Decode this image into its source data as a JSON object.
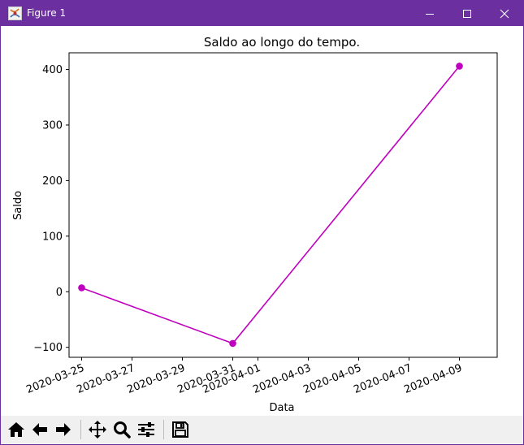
{
  "window": {
    "title": "Figure 1",
    "accent_color": "#6b2fa0",
    "controls": [
      "minimize-icon",
      "maximize-icon",
      "close-icon"
    ]
  },
  "toolbar": {
    "buttons": [
      "home-icon",
      "back-icon",
      "forward-icon",
      "pan-icon",
      "zoom-icon",
      "configure-subplots-icon",
      "save-icon"
    ]
  },
  "chart_data": {
    "type": "line",
    "title": "Saldo ao longo do tempo.",
    "xlabel": "Data",
    "ylabel": "Saldo",
    "x": [
      "2020-03-25",
      "2020-03-31",
      "2020-04-09"
    ],
    "y": [
      7,
      -93,
      406
    ],
    "x_ticks": [
      "2020-03-25",
      "2020-03-27",
      "2020-03-29",
      "2020-03-31",
      "2020-04-01",
      "2020-04-03",
      "2020-04-05",
      "2020-04-07",
      "2020-04-09"
    ],
    "y_ticks": [
      -100,
      0,
      100,
      200,
      300,
      400
    ],
    "y_tick_labels": [
      "−100",
      "0",
      "100",
      "200",
      "300",
      "400"
    ],
    "xlim": [
      "2020-03-24 12:00",
      "2020-04-10 12:00"
    ],
    "ylim": [
      -118,
      430
    ],
    "color": "#bf00bf",
    "marker": "circle",
    "grid": false
  }
}
